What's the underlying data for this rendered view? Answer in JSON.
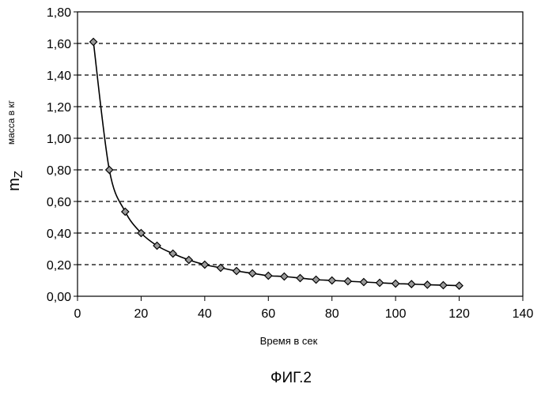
{
  "chart_data": {
    "type": "line",
    "x_ticks": [
      "0",
      "20",
      "40",
      "60",
      "80",
      "100",
      "120",
      "140"
    ],
    "y_ticks": [
      "0,00",
      "0,20",
      "0,40",
      "0,60",
      "0,80",
      "1,00",
      "1,20",
      "1,40",
      "1,60",
      "1,80"
    ],
    "xlim": [
      0,
      140
    ],
    "ylim": [
      0,
      1.8
    ],
    "xlabel": "Время в сек",
    "ylabel_main": "m",
    "ylabel_subscript": "Z",
    "ylabel_unit": "масса в кг",
    "grid": "horizontal dashed",
    "series": [
      {
        "x": [
          5,
          10,
          15,
          20,
          25,
          30,
          35,
          40,
          45,
          50,
          55,
          60,
          65,
          70,
          75,
          80,
          85,
          90,
          95,
          100,
          105,
          110,
          115,
          120
        ],
        "y": [
          1.61,
          0.8,
          0.535,
          0.4,
          0.32,
          0.27,
          0.23,
          0.2,
          0.18,
          0.16,
          0.145,
          0.13,
          0.125,
          0.115,
          0.105,
          0.1,
          0.095,
          0.09,
          0.085,
          0.08,
          0.077,
          0.073,
          0.07,
          0.067
        ]
      }
    ]
  },
  "caption": "ФИГ.2"
}
